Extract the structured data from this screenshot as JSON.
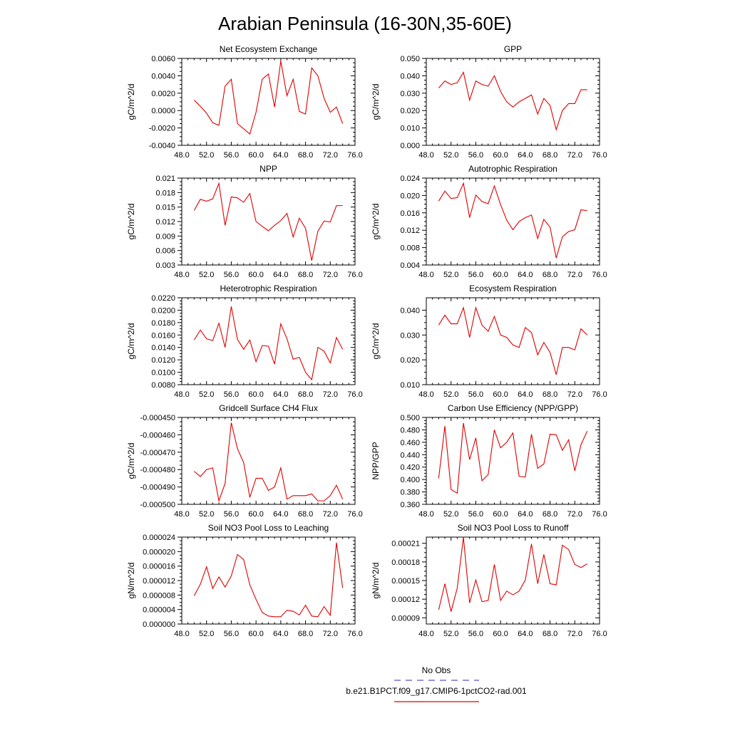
{
  "title": "Arabian Peninsula (16-30N,35-60E)",
  "legend": {
    "items": [
      {
        "label": "No Obs",
        "color": "#5555cc",
        "dash": true
      },
      {
        "label": "b.e21.B1PCT.f09_g17.CMIP6-1pctCO2-rad.001",
        "color": "#e00000",
        "dash": false
      }
    ]
  },
  "chart_data": [
    {
      "type": "line",
      "title": "Net Ecosystem Exchange",
      "ylabel": "gC/m^2/d",
      "xlim": [
        48,
        76
      ],
      "xticks": [
        "48.0",
        "52.0",
        "56.0",
        "60.0",
        "64.0",
        "68.0",
        "72.0",
        "76.0"
      ],
      "xtick_values": [
        48,
        52,
        56,
        60,
        64,
        68,
        72,
        76
      ],
      "ylim": [
        -0.004,
        0.006
      ],
      "yticks": [
        "-0.0040",
        "-0.0020",
        "0.0000",
        "0.0020",
        "0.0040",
        "0.0060"
      ],
      "ytick_values": [
        -0.004,
        -0.002,
        0,
        0.002,
        0.004,
        0.006
      ],
      "series": [
        {
          "name": "b.e21.B1PCT.f09_g17.CMIP6-1pctCO2-rad.001",
          "color": "#e00000",
          "x": [
            50,
            51,
            52,
            53,
            54,
            55,
            56,
            57,
            58,
            59,
            60,
            61,
            62,
            63,
            64,
            65,
            66,
            67,
            68,
            69,
            70,
            71,
            72,
            73,
            74
          ],
          "y": [
            0.0012,
            0.0005,
            -0.0003,
            -0.0014,
            -0.0017,
            0.0028,
            0.0036,
            -0.0015,
            -0.0021,
            -0.0027,
            -0.0002,
            0.0036,
            0.0042,
            0.0004,
            0.0057,
            0.0017,
            0.0036,
            -0.0001,
            -0.0004,
            0.0049,
            0.004,
            0.0014,
            -0.0002,
            0.0004,
            -0.0015
          ]
        }
      ]
    },
    {
      "type": "line",
      "title": "GPP",
      "ylabel": "gC/m^2/d",
      "xlim": [
        48,
        76
      ],
      "xticks": [
        "48.0",
        "52.0",
        "56.0",
        "60.0",
        "64.0",
        "68.0",
        "72.0",
        "76.0"
      ],
      "xtick_values": [
        48,
        52,
        56,
        60,
        64,
        68,
        72,
        76
      ],
      "ylim": [
        0,
        0.05
      ],
      "yticks": [
        "0.000",
        "0.010",
        "0.020",
        "0.030",
        "0.040",
        "0.050"
      ],
      "ytick_values": [
        0,
        0.01,
        0.02,
        0.03,
        0.04,
        0.05
      ],
      "series": [
        {
          "name": "b.e21.B1PCT.f09_g17.CMIP6-1pctCO2-rad.001",
          "color": "#e00000",
          "x": [
            50,
            51,
            52,
            53,
            54,
            55,
            56,
            57,
            58,
            59,
            60,
            61,
            62,
            63,
            64,
            65,
            66,
            67,
            68,
            69,
            70,
            71,
            72,
            73,
            74
          ],
          "y": [
            0.033,
            0.037,
            0.035,
            0.036,
            0.042,
            0.026,
            0.037,
            0.035,
            0.034,
            0.04,
            0.031,
            0.025,
            0.022,
            0.025,
            0.027,
            0.029,
            0.018,
            0.027,
            0.023,
            0.009,
            0.02,
            0.024,
            0.024,
            0.032,
            0.032
          ]
        }
      ]
    },
    {
      "type": "line",
      "title": "NPP",
      "ylabel": "gC/m^2/d",
      "xlim": [
        48,
        76
      ],
      "xticks": [
        "48.0",
        "52.0",
        "56.0",
        "60.0",
        "64.0",
        "68.0",
        "72.0",
        "76.0"
      ],
      "xtick_values": [
        48,
        52,
        56,
        60,
        64,
        68,
        72,
        76
      ],
      "ylim": [
        0.003,
        0.021
      ],
      "yticks": [
        "0.003",
        "0.006",
        "0.009",
        "0.012",
        "0.015",
        "0.018",
        "0.021"
      ],
      "ytick_values": [
        0.003,
        0.006,
        0.009,
        0.012,
        0.015,
        0.018,
        0.021
      ],
      "series": [
        {
          "name": "b.e21.B1PCT.f09_g17.CMIP6-1pctCO2-rad.001",
          "color": "#e00000",
          "x": [
            50,
            51,
            52,
            53,
            54,
            55,
            56,
            57,
            58,
            59,
            60,
            61,
            62,
            63,
            64,
            65,
            66,
            67,
            68,
            69,
            70,
            71,
            72,
            73,
            74
          ],
          "y": [
            0.0143,
            0.0166,
            0.0162,
            0.0167,
            0.0199,
            0.0112,
            0.0171,
            0.0169,
            0.016,
            0.0178,
            0.012,
            0.011,
            0.0101,
            0.0112,
            0.0122,
            0.0137,
            0.0088,
            0.0127,
            0.0106,
            0.0039,
            0.01,
            0.0121,
            0.0119,
            0.0153,
            0.0153
          ]
        }
      ]
    },
    {
      "type": "line",
      "title": "Autotrophic Respiration",
      "ylabel": "gC/m^2/d",
      "xlim": [
        48,
        76
      ],
      "xticks": [
        "48.0",
        "52.0",
        "56.0",
        "60.0",
        "64.0",
        "68.0",
        "72.0",
        "76.0"
      ],
      "xtick_values": [
        48,
        52,
        56,
        60,
        64,
        68,
        72,
        76
      ],
      "ylim": [
        0.004,
        0.024
      ],
      "yticks": [
        "0.004",
        "0.008",
        "0.012",
        "0.016",
        "0.020",
        "0.024"
      ],
      "ytick_values": [
        0.004,
        0.008,
        0.012,
        0.016,
        0.02,
        0.024
      ],
      "series": [
        {
          "name": "b.e21.B1PCT.f09_g17.CMIP6-1pctCO2-rad.001",
          "color": "#e00000",
          "x": [
            50,
            51,
            52,
            53,
            54,
            55,
            56,
            57,
            58,
            59,
            60,
            61,
            62,
            63,
            64,
            65,
            66,
            67,
            68,
            69,
            70,
            71,
            72,
            73,
            74
          ],
          "y": [
            0.0187,
            0.021,
            0.0193,
            0.0195,
            0.0228,
            0.0149,
            0.0201,
            0.0186,
            0.0181,
            0.0222,
            0.0179,
            0.0143,
            0.0121,
            0.014,
            0.0149,
            0.0155,
            0.0101,
            0.0145,
            0.0127,
            0.0056,
            0.0105,
            0.0117,
            0.0121,
            0.0167,
            0.0165
          ]
        }
      ]
    },
    {
      "type": "line",
      "title": "Heterotrophic Respiration",
      "ylabel": "gC/m^2/d",
      "xlim": [
        48,
        76
      ],
      "xticks": [
        "48.0",
        "52.0",
        "56.0",
        "60.0",
        "64.0",
        "68.0",
        "72.0",
        "76.0"
      ],
      "xtick_values": [
        48,
        52,
        56,
        60,
        64,
        68,
        72,
        76
      ],
      "ylim": [
        0.008,
        0.022
      ],
      "yticks": [
        "0.0080",
        "0.0100",
        "0.0120",
        "0.0140",
        "0.0160",
        "0.0180",
        "0.0200",
        "0.0220"
      ],
      "ytick_values": [
        0.008,
        0.01,
        0.012,
        0.014,
        0.016,
        0.018,
        0.02,
        0.022
      ],
      "series": [
        {
          "name": "b.e21.B1PCT.f09_g17.CMIP6-1pctCO2-rad.001",
          "color": "#e00000",
          "x": [
            50,
            51,
            52,
            53,
            54,
            55,
            56,
            57,
            58,
            59,
            60,
            61,
            62,
            63,
            64,
            65,
            66,
            67,
            68,
            69,
            70,
            71,
            72,
            73,
            74
          ],
          "y": [
            0.0152,
            0.0168,
            0.0154,
            0.0151,
            0.0179,
            0.014,
            0.0206,
            0.0153,
            0.0137,
            0.0152,
            0.0117,
            0.0143,
            0.0142,
            0.0113,
            0.0178,
            0.0154,
            0.0121,
            0.0124,
            0.01,
            0.0088,
            0.014,
            0.0134,
            0.0115,
            0.0156,
            0.0137
          ]
        }
      ]
    },
    {
      "type": "line",
      "title": "Ecosystem Respiration",
      "ylabel": "gC/m^2/d",
      "xlim": [
        48,
        76
      ],
      "xticks": [
        "48.0",
        "52.0",
        "56.0",
        "60.0",
        "64.0",
        "68.0",
        "72.0",
        "76.0"
      ],
      "xtick_values": [
        48,
        52,
        56,
        60,
        64,
        68,
        72,
        76
      ],
      "ylim": [
        0.01,
        0.045
      ],
      "yticks": [
        "0.010",
        "0.020",
        "0.030",
        "0.040"
      ],
      "ytick_values": [
        0.01,
        0.02,
        0.03,
        0.04
      ],
      "series": [
        {
          "name": "b.e21.B1PCT.f09_g17.CMIP6-1pctCO2-rad.001",
          "color": "#e00000",
          "x": [
            50,
            51,
            52,
            53,
            54,
            55,
            56,
            57,
            58,
            59,
            60,
            61,
            62,
            63,
            64,
            65,
            66,
            67,
            68,
            69,
            70,
            71,
            72,
            73,
            74
          ],
          "y": [
            0.034,
            0.038,
            0.0345,
            0.0345,
            0.041,
            0.029,
            0.041,
            0.034,
            0.0315,
            0.0375,
            0.03,
            0.029,
            0.026,
            0.025,
            0.033,
            0.031,
            0.022,
            0.027,
            0.023,
            0.014,
            0.025,
            0.025,
            0.024,
            0.0325,
            0.03
          ]
        }
      ]
    },
    {
      "type": "line",
      "title": "Gridcell Surface CH4 Flux",
      "ylabel": "gC/m^2/d",
      "xlim": [
        48,
        76
      ],
      "xticks": [
        "48.0",
        "52.0",
        "56.0",
        "60.0",
        "64.0",
        "68.0",
        "72.0",
        "76.0"
      ],
      "xtick_values": [
        48,
        52,
        56,
        60,
        64,
        68,
        72,
        76
      ],
      "ylim": [
        -0.0005,
        -0.00045
      ],
      "yticks": [
        "-0.000500",
        "-0.000490",
        "-0.000480",
        "-0.000470",
        "-0.000460",
        "-0.000450"
      ],
      "ytick_values": [
        -0.0005,
        -0.00049,
        -0.00048,
        -0.00047,
        -0.00046,
        -0.00045
      ],
      "series": [
        {
          "name": "b.e21.B1PCT.f09_g17.CMIP6-1pctCO2-rad.001",
          "color": "#e00000",
          "x": [
            50,
            51,
            52,
            53,
            54,
            55,
            56,
            57,
            58,
            59,
            60,
            61,
            62,
            63,
            64,
            65,
            66,
            67,
            68,
            69,
            70,
            71,
            72,
            73,
            74
          ],
          "y": [
            -0.000481,
            -0.000484,
            -0.00048,
            -0.000479,
            -0.000498,
            -0.000488,
            -0.000453,
            -0.000468,
            -0.000476,
            -0.000496,
            -0.000485,
            -0.000485,
            -0.000492,
            -0.00049,
            -0.000479,
            -0.000497,
            -0.000495,
            -0.000495,
            -0.000495,
            -0.000494,
            -0.000498,
            -0.000498,
            -0.000495,
            -0.000489,
            -0.000497
          ]
        }
      ]
    },
    {
      "type": "line",
      "title": "Carbon Use Efficiency (NPP/GPP)",
      "ylabel": "NPP/GPP",
      "xlim": [
        48,
        76
      ],
      "xticks": [
        "48.0",
        "52.0",
        "56.0",
        "60.0",
        "64.0",
        "68.0",
        "72.0",
        "76.0"
      ],
      "xtick_values": [
        48,
        52,
        56,
        60,
        64,
        68,
        72,
        76
      ],
      "ylim": [
        0.36,
        0.5
      ],
      "yticks": [
        "0.360",
        "0.380",
        "0.400",
        "0.420",
        "0.440",
        "0.460",
        "0.480",
        "0.500"
      ],
      "ytick_values": [
        0.36,
        0.38,
        0.4,
        0.42,
        0.44,
        0.46,
        0.48,
        0.5
      ],
      "series": [
        {
          "name": "b.e21.B1PCT.f09_g17.CMIP6-1pctCO2-rad.001",
          "color": "#e00000",
          "x": [
            50,
            51,
            52,
            53,
            54,
            55,
            56,
            57,
            58,
            59,
            60,
            61,
            62,
            63,
            64,
            65,
            66,
            67,
            68,
            69,
            70,
            71,
            72,
            73,
            74
          ],
          "y": [
            0.402,
            0.486,
            0.384,
            0.378,
            0.491,
            0.432,
            0.467,
            0.398,
            0.408,
            0.48,
            0.451,
            0.46,
            0.475,
            0.405,
            0.404,
            0.473,
            0.418,
            0.425,
            0.473,
            0.472,
            0.447,
            0.464,
            0.414,
            0.456,
            0.478
          ]
        }
      ]
    },
    {
      "type": "line",
      "title": "Soil NO3 Pool Loss to Leaching",
      "ylabel": "gN/m^2/d",
      "xlim": [
        48,
        76
      ],
      "xticks": [
        "48.0",
        "52.0",
        "56.0",
        "60.0",
        "64.0",
        "68.0",
        "72.0",
        "76.0"
      ],
      "xtick_values": [
        48,
        52,
        56,
        60,
        64,
        68,
        72,
        76
      ],
      "ylim": [
        0,
        2.4e-05
      ],
      "yticks": [
        "0.000000",
        "0.000004",
        "0.000008",
        "0.000012",
        "0.000016",
        "0.000020",
        "0.000024"
      ],
      "ytick_values": [
        0,
        4e-06,
        8e-06,
        1.2e-05,
        1.6e-05,
        2e-05,
        2.4e-05
      ],
      "series": [
        {
          "name": "b.e21.B1PCT.f09_g17.CMIP6-1pctCO2-rad.001",
          "color": "#e00000",
          "x": [
            50,
            51,
            52,
            53,
            54,
            55,
            56,
            57,
            58,
            59,
            60,
            61,
            62,
            63,
            64,
            65,
            66,
            67,
            68,
            69,
            70,
            71,
            72,
            73,
            74
          ],
          "y": [
            7.8e-06,
            1.1e-05,
            1.58e-05,
            9.8e-06,
            1.3e-05,
            1.02e-05,
            1.33e-05,
            1.92e-05,
            1.78e-05,
            1.08e-05,
            6.8e-06,
            3.2e-06,
            2.2e-06,
            2e-06,
            2e-06,
            3.8e-06,
            3.5e-06,
            2.5e-06,
            5.2e-06,
            2.2e-06,
            2e-06,
            4.8e-06,
            2.4e-06,
            2.25e-05,
            1e-05
          ]
        }
      ]
    },
    {
      "type": "line",
      "title": "Soil NO3 Pool Loss to Runoff",
      "ylabel": "gN/m^2/d",
      "xlim": [
        48,
        76
      ],
      "xticks": [
        "48.0",
        "52.0",
        "56.0",
        "60.0",
        "64.0",
        "68.0",
        "72.0",
        "76.0"
      ],
      "xtick_values": [
        48,
        52,
        56,
        60,
        64,
        68,
        72,
        76
      ],
      "ylim": [
        8e-05,
        0.00022
      ],
      "yticks": [
        "0.00009",
        "0.00012",
        "0.00015",
        "0.00018",
        "0.00021"
      ],
      "ytick_values": [
        9e-05,
        0.00012,
        0.00015,
        0.00018,
        0.00021
      ],
      "series": [
        {
          "name": "b.e21.B1PCT.f09_g17.CMIP6-1pctCO2-rad.001",
          "color": "#e00000",
          "x": [
            50,
            51,
            52,
            53,
            54,
            55,
            56,
            57,
            58,
            59,
            60,
            61,
            62,
            63,
            64,
            65,
            66,
            67,
            68,
            69,
            70,
            71,
            72,
            73,
            74
          ],
          "y": [
            0.000103,
            0.000145,
            0.0001,
            0.000138,
            0.00022,
            0.000114,
            0.000151,
            0.000116,
            0.000118,
            0.000176,
            0.000118,
            0.000133,
            0.000127,
            0.000133,
            0.000151,
            0.000209,
            0.000145,
            0.000192,
            0.000145,
            0.000143,
            0.000207,
            0.0002,
            0.000176,
            0.000171,
            0.000177
          ]
        }
      ]
    }
  ]
}
